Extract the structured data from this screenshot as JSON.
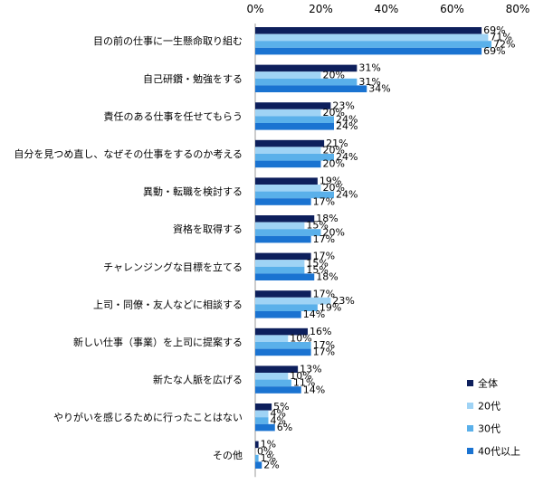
{
  "chart_data": {
    "type": "bar",
    "orientation": "horizontal",
    "xlim": [
      0,
      80
    ],
    "x_ticks": [
      "0%",
      "20%",
      "40%",
      "60%",
      "80%"
    ],
    "x_tick_values": [
      0,
      20,
      40,
      60,
      80
    ],
    "tick_position": "top",
    "grid": false,
    "legend_position": "bottom-right",
    "value_suffix": "%",
    "categories": [
      "目の前の仕事に一生懸命取り組む",
      "自己研鑽・勉強をする",
      "責任のある仕事を任せてもらう",
      "自分を見つめ直し、なぜその仕事をするのか考える",
      "異動・転職を検討する",
      "資格を取得する",
      "チャレンジングな目標を立てる",
      "上司・同僚・友人などに相談する",
      "新しい仕事（事業）を上司に提案する",
      "新たな人脈を広げる",
      "やりがいを感じるために行ったことはない",
      "その他"
    ],
    "series": [
      {
        "name": "全体",
        "color": "#0d1f5c",
        "values": [
          69,
          31,
          23,
          21,
          19,
          18,
          17,
          17,
          16,
          13,
          5,
          1
        ]
      },
      {
        "name": "20代",
        "color": "#9fd3f5",
        "values": [
          71,
          20,
          20,
          20,
          20,
          15,
          15,
          23,
          10,
          10,
          4,
          0
        ]
      },
      {
        "name": "30代",
        "color": "#5ab0ea",
        "values": [
          72,
          31,
          24,
          24,
          24,
          20,
          15,
          19,
          17,
          11,
          4,
          1
        ]
      },
      {
        "name": "40代以上",
        "color": "#1a73d1",
        "values": [
          69,
          34,
          24,
          20,
          17,
          17,
          18,
          14,
          17,
          14,
          6,
          2
        ]
      }
    ]
  }
}
